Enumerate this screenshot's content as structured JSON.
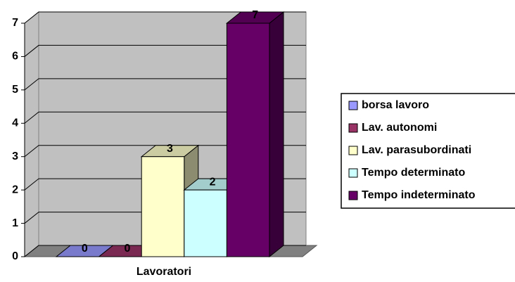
{
  "chart_data": {
    "type": "bar3d",
    "categories": [
      "Lavoratori"
    ],
    "series": [
      {
        "name": "borsa lavoro",
        "color": "#9999ff",
        "values": [
          0
        ]
      },
      {
        "name": "Lav. autonomi",
        "color": "#993366",
        "values": [
          0
        ]
      },
      {
        "name": "Lav. parasubordinati",
        "color": "#ffffcc",
        "values": [
          3
        ]
      },
      {
        "name": "Tempo determinato",
        "color": "#ccffff",
        "values": [
          2
        ]
      },
      {
        "name": "Tempo indeterminato",
        "color": "#660066",
        "values": [
          7
        ]
      }
    ],
    "ylim": [
      0,
      7
    ],
    "yticks": [
      0,
      1,
      2,
      3,
      4,
      5,
      6,
      7
    ],
    "grid": true,
    "legend": "right"
  }
}
